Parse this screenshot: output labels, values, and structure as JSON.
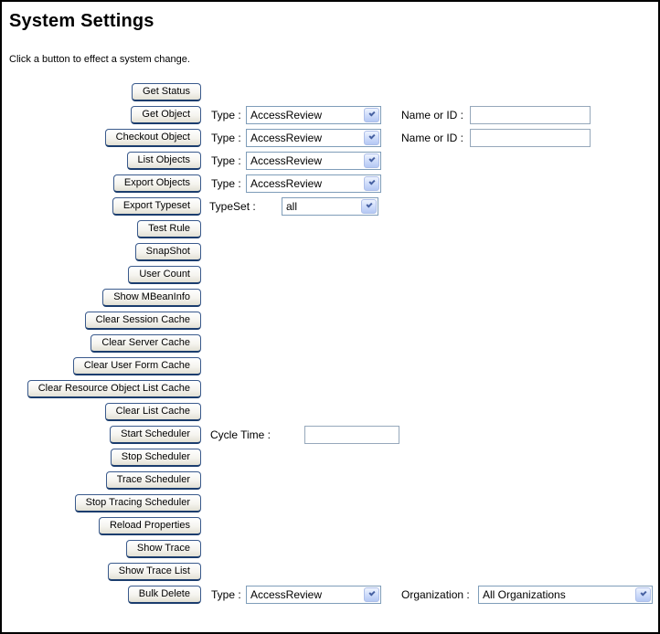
{
  "window": {
    "title": "System Settings",
    "subtitle": "Click a button to effect a system change."
  },
  "buttons": [
    "Get Status",
    "Get Object",
    "Checkout Object",
    "List Objects",
    "Export Objects",
    "Export Typeset",
    "Test Rule",
    "SnapShot",
    "User Count",
    "Show MBeanInfo",
    "Clear Session Cache",
    "Clear Server Cache",
    "Clear User Form Cache",
    "Clear Resource Object List Cache",
    "Clear List Cache",
    "Start Scheduler",
    "Stop Scheduler",
    "Trace Scheduler",
    "Stop Tracing Scheduler",
    "Reload Properties",
    "Show Trace",
    "Show Trace List",
    "Bulk Delete"
  ],
  "labels": {
    "type": "Type :",
    "name_or_id": "Name or ID :",
    "typeset": "TypeSet :",
    "cycle_time": "Cycle Time :",
    "organization": "Organization :"
  },
  "select_values": {
    "type": "AccessReview",
    "typeset": "all",
    "organization": "All Organizations"
  },
  "input_values": {
    "name_or_id": "",
    "cycle_time": ""
  },
  "icons": {
    "dropdown_arrow": "chevron-down-icon"
  },
  "colors": {
    "page_border": "#000000",
    "button_border": "#3a5a8c",
    "button_border_bottom": "#1b3d6e",
    "select_border": "#7f9db9",
    "select_arrow": "#4660a1",
    "input_border": "#96a8bb"
  }
}
